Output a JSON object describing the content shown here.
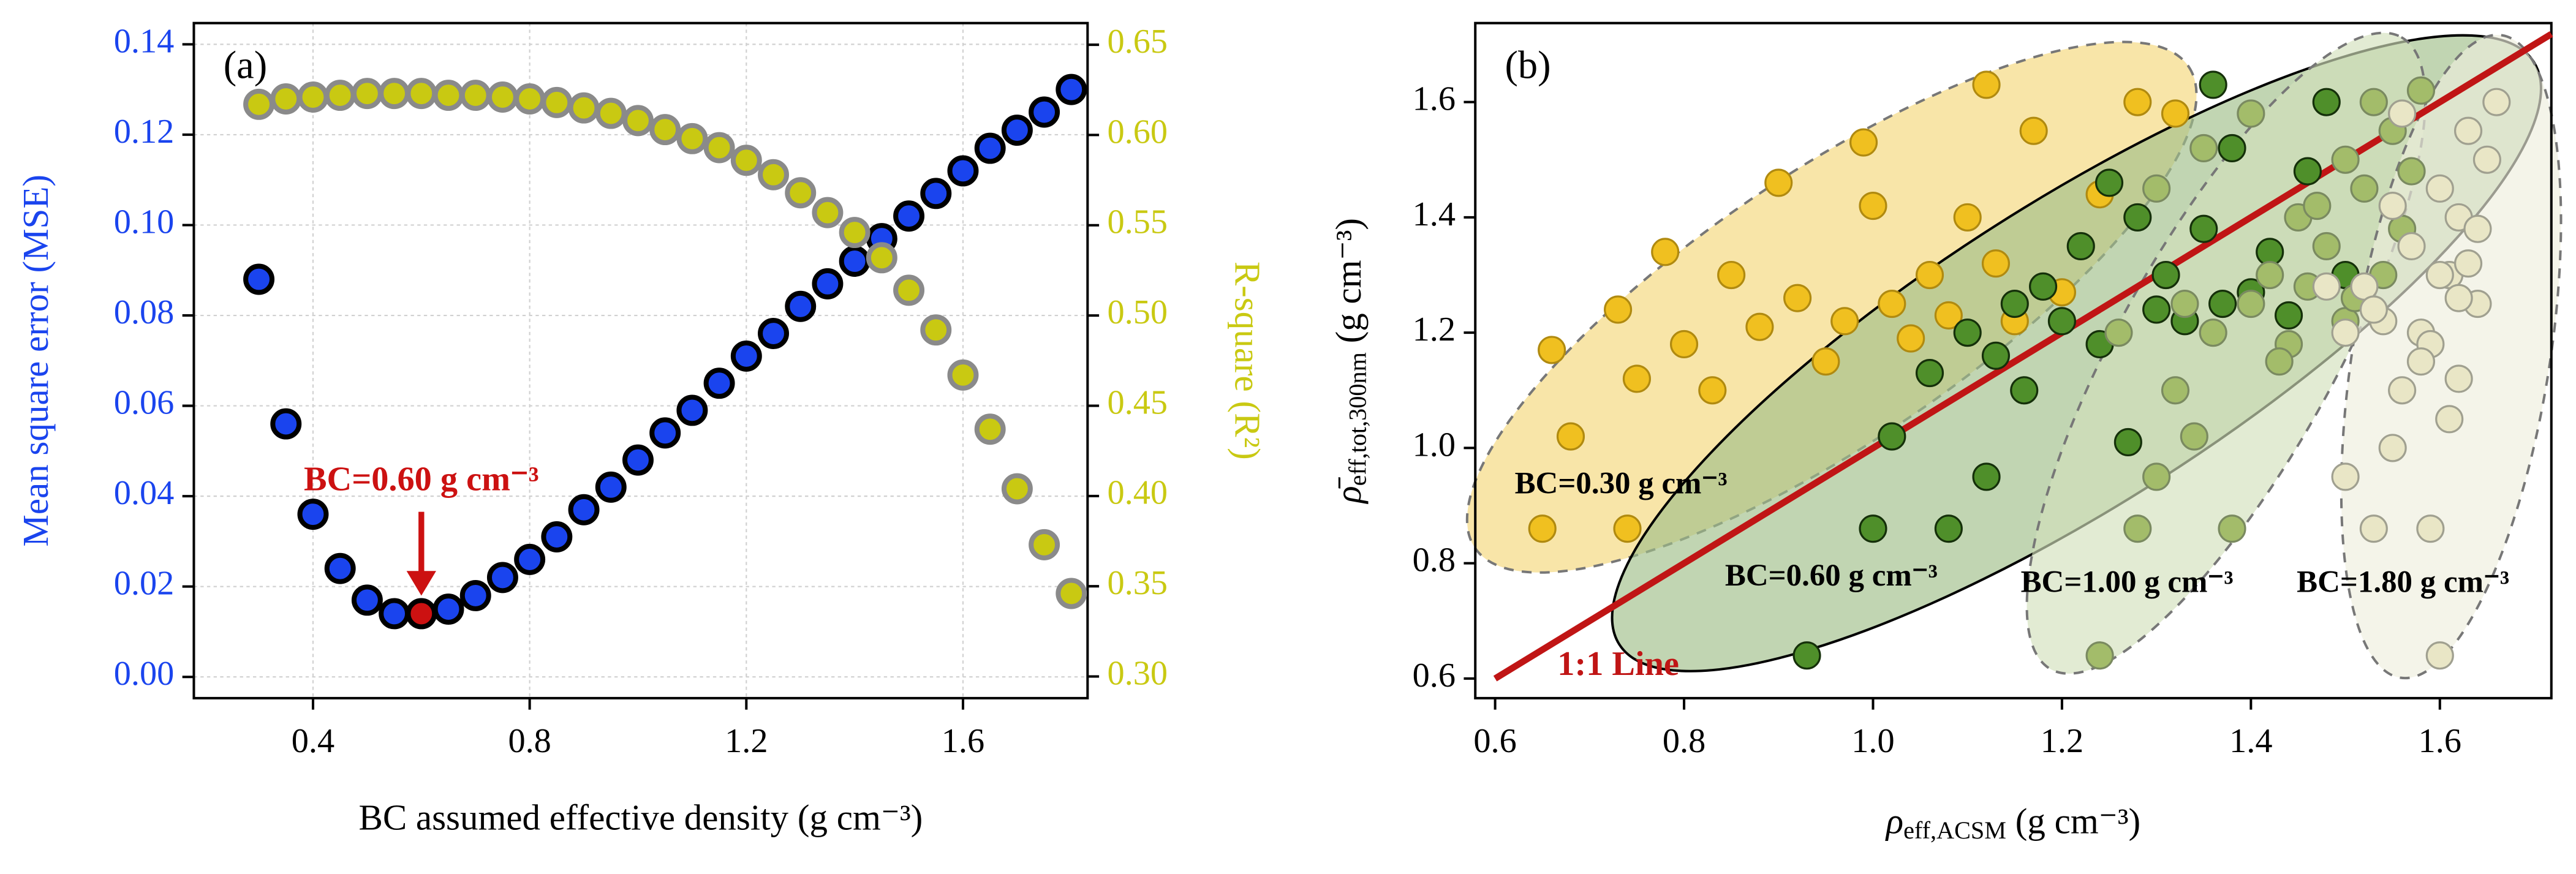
{
  "chart_data": [
    {
      "type": "scatter",
      "panel_label": "(a)",
      "xlabel": "BC assumed effective density (g cm⁻³)",
      "ylabel": "Mean square error (MSE)",
      "y2label": "R-square (R²)",
      "xlim": [
        0.18,
        1.83
      ],
      "ylim": [
        -0.0047,
        0.1447
      ],
      "y2lim": [
        0.288,
        0.662
      ],
      "xticks": [
        0.4,
        0.8,
        1.2,
        1.6
      ],
      "yticks": [
        {
          "value": 0,
          "label": "0.00"
        },
        {
          "value": 0.02,
          "label": "0.02"
        },
        {
          "value": 0.04,
          "label": "0.04"
        },
        {
          "value": 0.06,
          "label": "0.06"
        },
        {
          "value": 0.08,
          "label": "0.08"
        },
        {
          "value": 0.1,
          "label": "0.10"
        },
        {
          "value": 0.12,
          "label": "0.12"
        },
        {
          "value": 0.14,
          "label": "0.14"
        }
      ],
      "y2ticks": [
        {
          "value": 0.3,
          "label": "0.30"
        },
        {
          "value": 0.35,
          "label": "0.35"
        },
        {
          "value": 0.4,
          "label": "0.40"
        },
        {
          "value": 0.45,
          "label": "0.45"
        },
        {
          "value": 0.5,
          "label": "0.50"
        },
        {
          "value": 0.55,
          "label": "0.55"
        },
        {
          "value": 0.6,
          "label": "0.60"
        },
        {
          "value": 0.65,
          "label": "0.65"
        }
      ],
      "grid": true,
      "x": [
        0.3,
        0.35,
        0.4,
        0.45,
        0.5,
        0.55,
        0.6,
        0.65,
        0.7,
        0.75,
        0.8,
        0.85,
        0.9,
        0.95,
        1.0,
        1.05,
        1.1,
        1.15,
        1.2,
        1.25,
        1.3,
        1.35,
        1.4,
        1.45,
        1.5,
        1.55,
        1.6,
        1.65,
        1.7,
        1.75,
        1.8
      ],
      "series": [
        {
          "name": "MSE",
          "color": "#1a44ee",
          "edge": "#000000",
          "values": [
            0.088,
            0.056,
            0.036,
            0.024,
            0.017,
            0.014,
            0.014,
            0.015,
            0.018,
            0.022,
            0.026,
            0.031,
            0.037,
            0.042,
            0.048,
            0.054,
            0.059,
            0.065,
            0.071,
            0.076,
            0.082,
            0.087,
            0.092,
            0.097,
            0.102,
            0.107,
            0.112,
            0.117,
            0.121,
            0.125,
            0.13
          ]
        },
        {
          "name": "R²",
          "color": "#c9c912",
          "edge": "#8a8a8a",
          "axis": "y2",
          "values": [
            0.617,
            0.62,
            0.621,
            0.622,
            0.623,
            0.623,
            0.623,
            0.622,
            0.622,
            0.621,
            0.62,
            0.618,
            0.615,
            0.612,
            0.608,
            0.603,
            0.598,
            0.593,
            0.586,
            0.578,
            0.568,
            0.557,
            0.546,
            0.532,
            0.514,
            0.492,
            0.467,
            0.437,
            0.404,
            0.373,
            0.346
          ]
        }
      ],
      "annotation": {
        "text": "BC=0.60 g cm⁻³",
        "x": 0.6,
        "y": 0.014,
        "color": "#cc1111"
      }
    },
    {
      "type": "scatter",
      "panel_label": "(b)",
      "xlabel": {
        "symbol": "ρ",
        "subscript": "eff,ACSM",
        "unit": " (g cm⁻³)"
      },
      "ylabel": {
        "symbol": "ρ̄",
        "subscript": "eff,tot,300nm",
        "unit": " (g cm⁻³)"
      },
      "xlim": [
        0.579,
        1.718
      ],
      "ylim": [
        0.566,
        1.737
      ],
      "xticks": [
        0.6,
        0.8,
        {
          "value": 1,
          "label": "1.0"
        },
        1.2,
        1.4,
        1.6
      ],
      "yticks": [
        0.6,
        0.8,
        {
          "value": 1,
          "label": "1.0"
        },
        1.2,
        1.4,
        1.6
      ],
      "grid": false,
      "reference_line": {
        "label": "1:1 Line",
        "color": "#c01515"
      },
      "series": [
        {
          "name": "BC=0.30 g cm⁻³",
          "color": "#f0c020",
          "edge": "#b08a10",
          "ellipse_color": "#f5d77a",
          "ellipse_edge": "#777777",
          "x": [
            0.65,
            0.66,
            0.68,
            0.73,
            0.74,
            0.75,
            0.78,
            0.8,
            0.83,
            0.85,
            0.88,
            0.9,
            0.92,
            0.95,
            0.97,
            0.99,
            1.0,
            1.02,
            1.04,
            1.06,
            1.08,
            1.1,
            1.12,
            1.13,
            1.15,
            1.17,
            1.2,
            1.24,
            1.28,
            1.32
          ],
          "values": [
            0.86,
            1.17,
            1.02,
            1.24,
            0.86,
            1.12,
            1.34,
            1.18,
            1.1,
            1.3,
            1.21,
            1.46,
            1.26,
            1.15,
            1.22,
            1.53,
            1.42,
            1.25,
            1.19,
            1.3,
            1.23,
            1.4,
            1.63,
            1.32,
            1.22,
            1.55,
            1.27,
            1.44,
            1.6,
            1.58
          ]
        },
        {
          "name": "BC=0.60 g cm⁻³",
          "color": "#4f8f2a",
          "edge": "#15300a",
          "ellipse_color": "#9fbf88",
          "ellipse_edge": "#000000",
          "x": [
            0.93,
            1.0,
            1.02,
            1.06,
            1.08,
            1.1,
            1.12,
            1.13,
            1.15,
            1.16,
            1.18,
            1.2,
            1.22,
            1.24,
            1.25,
            1.27,
            1.28,
            1.3,
            1.31,
            1.33,
            1.35,
            1.36,
            1.37,
            1.38,
            1.4,
            1.42,
            1.44,
            1.46,
            1.48,
            1.5
          ],
          "values": [
            0.64,
            0.86,
            1.02,
            1.13,
            0.86,
            1.2,
            0.95,
            1.16,
            1.25,
            1.1,
            1.28,
            1.22,
            1.35,
            1.18,
            1.46,
            1.01,
            1.4,
            1.24,
            1.3,
            1.22,
            1.38,
            1.63,
            1.25,
            1.52,
            1.27,
            1.34,
            1.23,
            1.48,
            1.6,
            1.3
          ]
        },
        {
          "name": "BC=1.00 g cm⁻³",
          "color": "#a3bc6a",
          "edge": "#7a8a60",
          "ellipse_color": "#d3e0bb",
          "ellipse_edge": "#777777",
          "x": [
            1.24,
            1.28,
            1.3,
            1.32,
            1.34,
            1.36,
            1.38,
            1.4,
            1.42,
            1.44,
            1.45,
            1.46,
            1.48,
            1.5,
            1.5,
            1.52,
            1.53,
            1.54,
            1.55,
            1.56,
            1.58,
            1.3,
            1.35,
            1.4,
            1.47,
            1.43,
            1.33,
            1.26,
            1.51,
            1.57
          ],
          "values": [
            0.64,
            0.86,
            0.95,
            1.1,
            1.02,
            1.2,
            0.86,
            1.25,
            1.3,
            1.18,
            1.4,
            1.28,
            1.35,
            1.22,
            1.5,
            1.45,
            1.6,
            1.3,
            1.55,
            1.38,
            1.62,
            1.45,
            1.52,
            1.58,
            1.42,
            1.15,
            1.25,
            1.2,
            1.26,
            1.48
          ]
        },
        {
          "name": "BC=1.80 g cm⁻³",
          "color": "#e9e6c6",
          "edge": "#a0a090",
          "ellipse_color": "#eeeedd",
          "ellipse_edge": "#777777",
          "x": [
            1.5,
            1.53,
            1.55,
            1.56,
            1.58,
            1.59,
            1.6,
            1.61,
            1.62,
            1.63,
            1.64,
            1.65,
            1.5,
            1.52,
            1.54,
            1.57,
            1.59,
            1.6,
            1.62,
            1.63,
            1.66,
            1.55,
            1.58,
            1.61,
            1.53,
            1.6,
            1.64,
            1.56,
            1.62,
            1.48
          ],
          "values": [
            0.95,
            0.86,
            1.0,
            1.1,
            1.2,
            0.86,
            0.64,
            1.3,
            1.4,
            1.55,
            1.25,
            1.5,
            1.2,
            1.28,
            1.22,
            1.35,
            1.18,
            1.45,
            1.26,
            1.32,
            1.6,
            1.42,
            1.15,
            1.05,
            1.24,
            1.3,
            1.38,
            1.58,
            1.12,
            1.28
          ]
        }
      ]
    }
  ]
}
